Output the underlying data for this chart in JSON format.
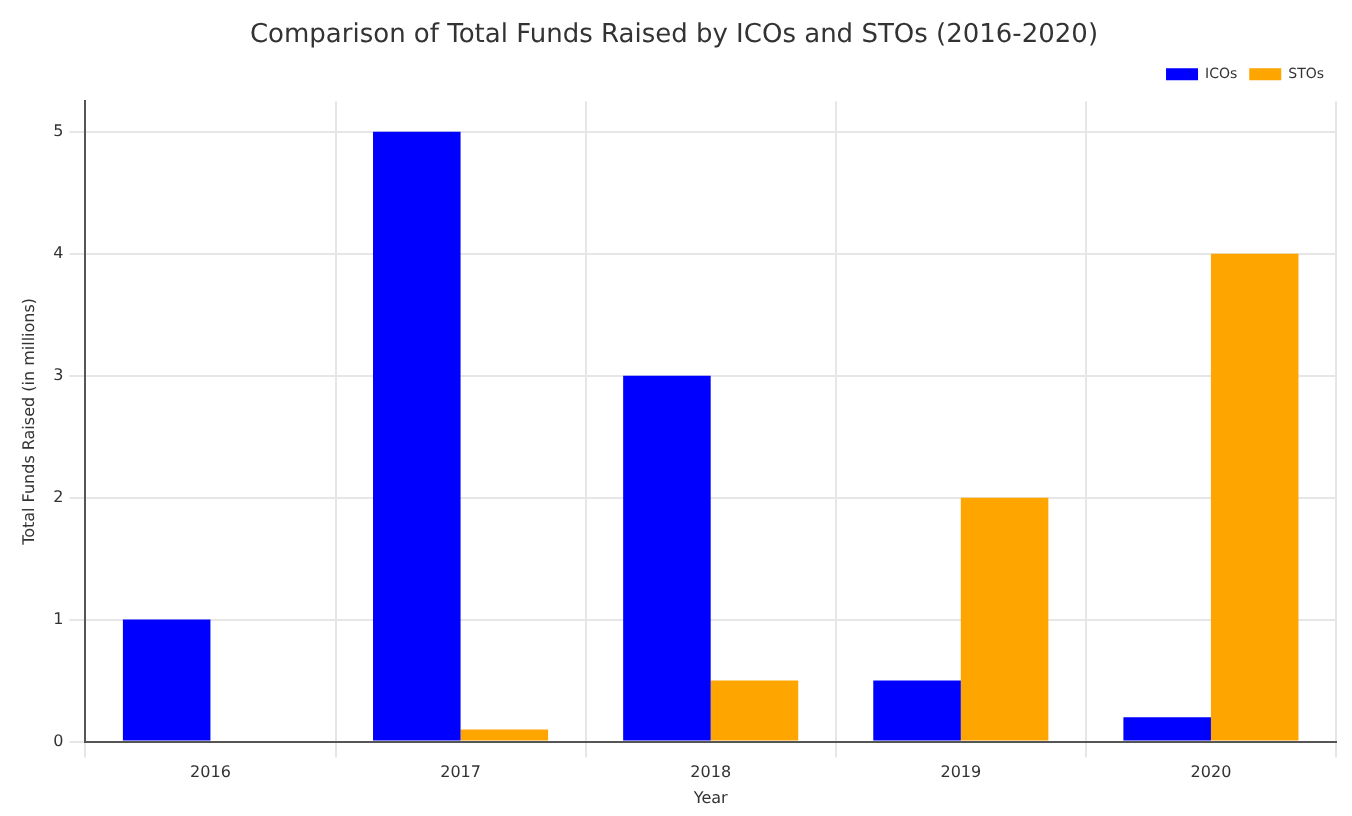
{
  "chart_data": {
    "type": "bar",
    "title": "Comparison of Total Funds Raised by ICOs and STOs (2016-2020)",
    "xlabel": "Year",
    "ylabel": "Total Funds Raised (in millions)",
    "categories": [
      "2016",
      "2017",
      "2018",
      "2019",
      "2020"
    ],
    "series": [
      {
        "name": "ICOs",
        "color": "#0000ff",
        "values": [
          1,
          5,
          3,
          0.5,
          0.2
        ]
      },
      {
        "name": "STOs",
        "color": "#ffa500",
        "values": [
          0,
          0.1,
          0.5,
          2,
          4
        ]
      }
    ],
    "ylim": [
      0,
      5.25
    ],
    "yticks": [
      0,
      1,
      2,
      3,
      4,
      5
    ],
    "grid": true,
    "legend": "top right"
  }
}
